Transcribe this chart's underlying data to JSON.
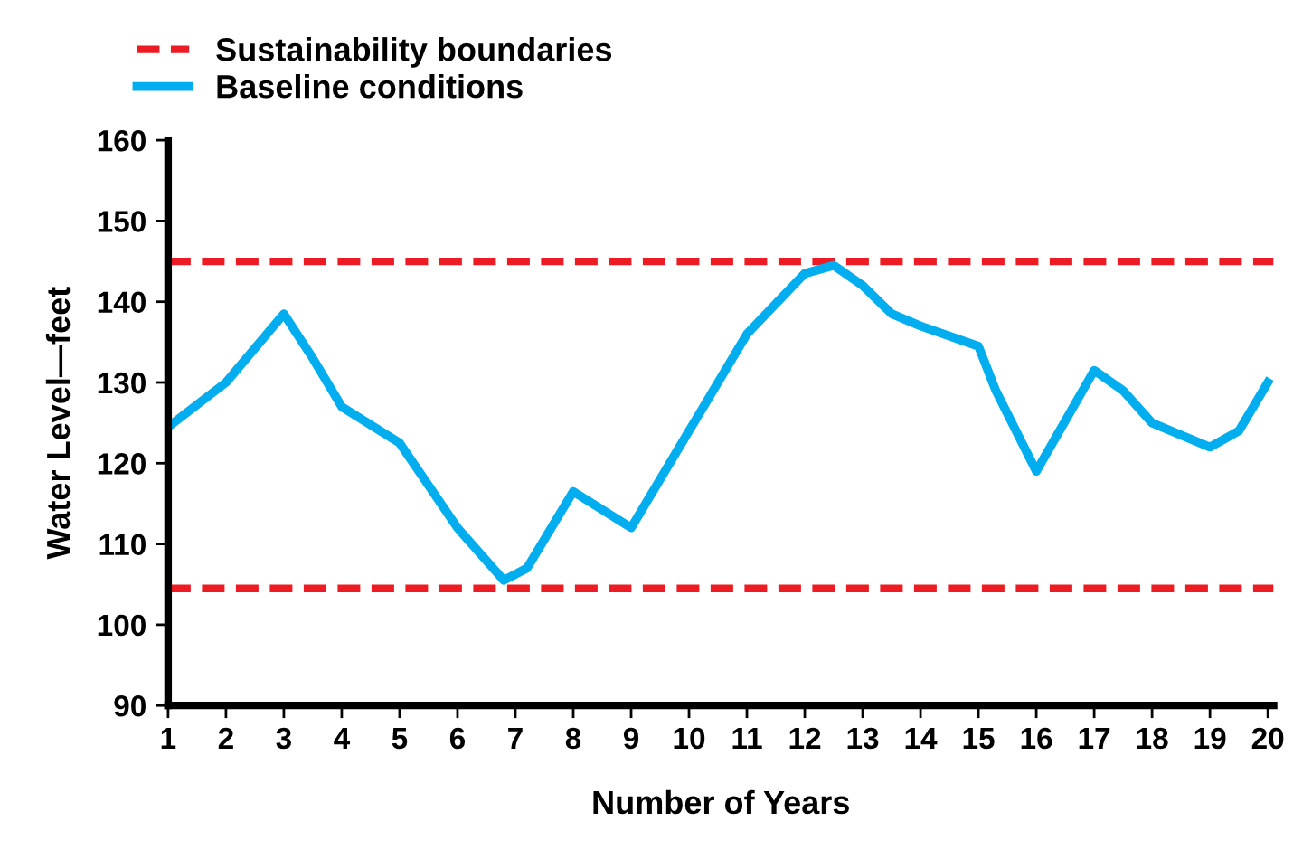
{
  "chart_data": {
    "type": "line",
    "xlabel": "Number of Years",
    "ylabel": "Water Level—feet",
    "series": [
      {
        "name": "Baseline conditions",
        "color": "#00aeef",
        "x": [
          1,
          2,
          3,
          3.5,
          4,
          5,
          6,
          6.8,
          7.2,
          8,
          9,
          10,
          11,
          12,
          12.5,
          13,
          13.5,
          14,
          15,
          15.3,
          16,
          17,
          17.5,
          18,
          19,
          19.5,
          20
        ],
        "values": [
          124.5,
          130,
          138.5,
          133,
          127,
          122.5,
          112,
          105.5,
          107,
          116.5,
          112,
          124,
          136,
          143.5,
          144.5,
          142,
          138.5,
          137,
          134.5,
          129,
          119,
          131.5,
          129,
          125,
          122,
          124,
          130
        ]
      }
    ],
    "ref_lines": [
      {
        "axis": "y",
        "value": 145,
        "label": "Sustainability boundaries",
        "color": "#ed1c24",
        "line_style": "dashed"
      },
      {
        "axis": "y",
        "value": 104.5,
        "color": "#ed1c24",
        "line_style": "dashed"
      }
    ],
    "xlim": [
      1,
      20.1
    ],
    "xticks": [
      1,
      2,
      3,
      4,
      5,
      6,
      7,
      8,
      9,
      10,
      11,
      12,
      13,
      14,
      15,
      16,
      17,
      18,
      19,
      20
    ],
    "ylim": [
      90,
      160
    ],
    "yticks": [
      90,
      100,
      110,
      120,
      130,
      140,
      150,
      160
    ],
    "grid": false,
    "legend": "top left",
    "marker": "none",
    "line_style": "solid"
  }
}
